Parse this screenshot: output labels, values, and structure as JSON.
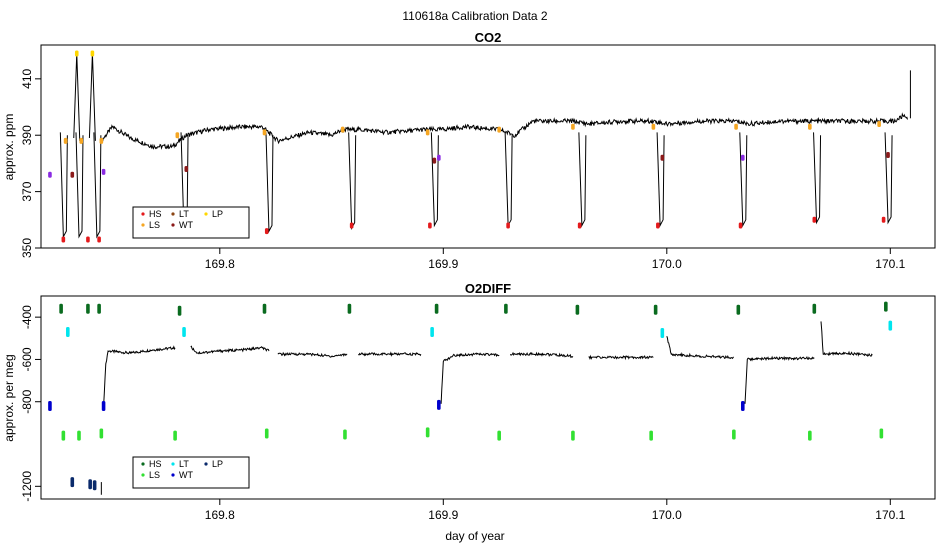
{
  "figure_title": "110618a   Calibration Data 2",
  "chart_data": [
    {
      "type": "line",
      "title": "CO2",
      "xlabel": "",
      "ylabel": "approx. ppm",
      "xlim": [
        169.72,
        170.12
      ],
      "ylim": [
        350,
        422
      ],
      "x_ticks": [
        169.8,
        169.9,
        170.0,
        170.1
      ],
      "x_tick_labels": [
        "169.8",
        "169.9",
        "170.0",
        "170.1"
      ],
      "y_ticks": [
        350,
        370,
        390,
        410
      ],
      "y_tick_labels": [
        "350",
        "370",
        "390",
        "410"
      ],
      "legend": {
        "placement": "bottom-left",
        "entries": [
          {
            "label": "HS",
            "color": "#e41a1c"
          },
          {
            "label": "LT",
            "color": "#8b4513"
          },
          {
            "label": "LP",
            "color": "#ffd700"
          },
          {
            "label": "LS",
            "color": "#f5a623"
          },
          {
            "label": "WT",
            "color": "#8b1a1a"
          }
        ]
      },
      "trace_color": "#000000",
      "baseline": [
        [
          169.747,
          388
        ],
        [
          169.752,
          393
        ],
        [
          169.76,
          389
        ],
        [
          169.77,
          386
        ],
        [
          169.779,
          386
        ],
        [
          169.785,
          390
        ],
        [
          169.795,
          392
        ],
        [
          169.81,
          393
        ],
        [
          169.819,
          393
        ],
        [
          169.826,
          388
        ],
        [
          169.84,
          391
        ],
        [
          169.85,
          390
        ],
        [
          169.855,
          392
        ],
        [
          169.863,
          392
        ],
        [
          169.875,
          391
        ],
        [
          169.891,
          392
        ],
        [
          169.899,
          392
        ],
        [
          169.91,
          393
        ],
        [
          169.925,
          392
        ],
        [
          169.932,
          390
        ],
        [
          169.94,
          395
        ],
        [
          169.958,
          395
        ],
        [
          169.965,
          394
        ],
        [
          169.98,
          395
        ],
        [
          169.994,
          395
        ],
        [
          170.0,
          394
        ],
        [
          170.015,
          395
        ],
        [
          170.031,
          395
        ],
        [
          170.037,
          394
        ],
        [
          170.05,
          395
        ],
        [
          170.063,
          395
        ],
        [
          170.07,
          395
        ],
        [
          170.08,
          395
        ],
        [
          170.093,
          395
        ],
        [
          170.102,
          395
        ],
        [
          170.106,
          397
        ],
        [
          170.108,
          396
        ]
      ],
      "dips": [
        {
          "x": 169.73,
          "bottom": 354
        },
        {
          "x": 169.737,
          "bottom": 354
        },
        {
          "x": 169.745,
          "bottom": 354
        },
        {
          "x": 169.784,
          "bottom": 355
        },
        {
          "x": 169.822,
          "bottom": 356
        },
        {
          "x": 169.859,
          "bottom": 357
        },
        {
          "x": 169.896,
          "bottom": 358
        },
        {
          "x": 169.929,
          "bottom": 358
        },
        {
          "x": 169.962,
          "bottom": 358
        },
        {
          "x": 169.997,
          "bottom": 358
        },
        {
          "x": 170.034,
          "bottom": 358
        },
        {
          "x": 170.067,
          "bottom": 359
        },
        {
          "x": 170.099,
          "bottom": 359
        }
      ],
      "spike": {
        "x": 170.109,
        "top": 413
      },
      "calibration_points": [
        {
          "x": 169.724,
          "y": 376,
          "color": "#8a2be2"
        },
        {
          "x": 169.73,
          "y": 353,
          "color": "#e41a1c"
        },
        {
          "x": 169.731,
          "y": 388,
          "color": "#f5a623"
        },
        {
          "x": 169.734,
          "y": 376,
          "color": "#8b1a1a"
        },
        {
          "x": 169.736,
          "y": 419,
          "color": "#ffd700"
        },
        {
          "x": 169.738,
          "y": 388,
          "color": "#f5a623"
        },
        {
          "x": 169.741,
          "y": 353,
          "color": "#e41a1c"
        },
        {
          "x": 169.743,
          "y": 419,
          "color": "#ffd700"
        },
        {
          "x": 169.746,
          "y": 353,
          "color": "#e41a1c"
        },
        {
          "x": 169.747,
          "y": 388,
          "color": "#f5a623"
        },
        {
          "x": 169.748,
          "y": 377,
          "color": "#8a2be2"
        },
        {
          "x": 169.781,
          "y": 390,
          "color": "#f5a623"
        },
        {
          "x": 169.783,
          "y": 356,
          "color": "#e41a1c"
        },
        {
          "x": 169.785,
          "y": 378,
          "color": "#8b1a1a"
        },
        {
          "x": 169.82,
          "y": 391,
          "color": "#f5a623"
        },
        {
          "x": 169.821,
          "y": 356,
          "color": "#e41a1c"
        },
        {
          "x": 169.855,
          "y": 392,
          "color": "#f5a623"
        },
        {
          "x": 169.859,
          "y": 358,
          "color": "#e41a1c"
        },
        {
          "x": 169.893,
          "y": 391,
          "color": "#f5a623"
        },
        {
          "x": 169.894,
          "y": 358,
          "color": "#e41a1c"
        },
        {
          "x": 169.896,
          "y": 381,
          "color": "#8b1a1a"
        },
        {
          "x": 169.898,
          "y": 382,
          "color": "#8a2be2"
        },
        {
          "x": 169.925,
          "y": 392,
          "color": "#f5a623"
        },
        {
          "x": 169.929,
          "y": 358,
          "color": "#e41a1c"
        },
        {
          "x": 169.958,
          "y": 393,
          "color": "#f5a623"
        },
        {
          "x": 169.961,
          "y": 358,
          "color": "#e41a1c"
        },
        {
          "x": 169.994,
          "y": 393,
          "color": "#f5a623"
        },
        {
          "x": 169.996,
          "y": 358,
          "color": "#e41a1c"
        },
        {
          "x": 169.998,
          "y": 382,
          "color": "#8b1a1a"
        },
        {
          "x": 170.031,
          "y": 393,
          "color": "#f5a623"
        },
        {
          "x": 170.033,
          "y": 358,
          "color": "#e41a1c"
        },
        {
          "x": 170.034,
          "y": 382,
          "color": "#8a2be2"
        },
        {
          "x": 170.064,
          "y": 393,
          "color": "#f5a623"
        },
        {
          "x": 170.066,
          "y": 360,
          "color": "#e41a1c"
        },
        {
          "x": 170.095,
          "y": 394,
          "color": "#f5a623"
        },
        {
          "x": 170.097,
          "y": 360,
          "color": "#e41a1c"
        },
        {
          "x": 170.099,
          "y": 383,
          "color": "#8b1a1a"
        }
      ]
    },
    {
      "type": "line",
      "title": "O2DIFF",
      "xlabel": "day of year",
      "ylabel": "approx. per meg",
      "xlim": [
        169.72,
        170.12
      ],
      "ylim": [
        -1260,
        -300
      ],
      "x_ticks": [
        169.8,
        169.9,
        170.0,
        170.1
      ],
      "x_tick_labels": [
        "169.8",
        "169.9",
        "170.0",
        "170.1"
      ],
      "y_ticks": [
        -1200,
        -800,
        -600,
        -400
      ],
      "y_tick_labels": [
        "-1200",
        "-800",
        "-600",
        "-400"
      ],
      "legend": {
        "placement": "bottom-left",
        "entries": [
          {
            "label": "HS",
            "color": "#0a6b1f"
          },
          {
            "label": "LT",
            "color": "#00e5ee"
          },
          {
            "label": "LP",
            "color": "#0a2a6b"
          },
          {
            "label": "LS",
            "color": "#32e032"
          },
          {
            "label": "WT",
            "color": "#0000cd"
          }
        ]
      },
      "trace_color": "#000000",
      "trace_segments": [
        [
          [
            169.748,
            -820
          ],
          [
            169.749,
            -620
          ],
          [
            169.75,
            -560
          ],
          [
            169.76,
            -570
          ],
          [
            169.77,
            -555
          ],
          [
            169.78,
            -545
          ]
        ],
        [
          [
            169.787,
            -540
          ],
          [
            169.79,
            -570
          ],
          [
            169.8,
            -560
          ],
          [
            169.81,
            -555
          ],
          [
            169.819,
            -545
          ],
          [
            169.822,
            -560
          ]
        ],
        [
          [
            169.826,
            -575
          ],
          [
            169.84,
            -575
          ],
          [
            169.85,
            -585
          ],
          [
            169.857,
            -575
          ]
        ],
        [
          [
            169.862,
            -575
          ],
          [
            169.875,
            -575
          ],
          [
            169.89,
            -575
          ]
        ],
        [
          [
            169.899,
            -810
          ],
          [
            169.9,
            -610
          ],
          [
            169.905,
            -580
          ],
          [
            169.915,
            -575
          ],
          [
            169.925,
            -580
          ]
        ],
        [
          [
            169.93,
            -575
          ],
          [
            169.945,
            -575
          ],
          [
            169.958,
            -585
          ]
        ],
        [
          [
            169.965,
            -590
          ],
          [
            169.98,
            -590
          ],
          [
            169.994,
            -590
          ]
        ],
        [
          [
            170.0,
            -490
          ],
          [
            170.002,
            -575
          ],
          [
            170.015,
            -585
          ],
          [
            170.03,
            -590
          ]
        ],
        [
          [
            170.035,
            -810
          ],
          [
            170.036,
            -600
          ],
          [
            170.045,
            -595
          ],
          [
            170.06,
            -595
          ],
          [
            170.066,
            -595
          ]
        ],
        [
          [
            170.069,
            -420
          ],
          [
            170.07,
            -575
          ],
          [
            170.08,
            -570
          ],
          [
            170.092,
            -580
          ]
        ]
      ],
      "calibration_points": [
        {
          "x": 169.724,
          "y": -820,
          "color": "#0000cd"
        },
        {
          "x": 169.729,
          "y": -360,
          "color": "#0a6b1f"
        },
        {
          "x": 169.73,
          "y": -960,
          "color": "#32e032"
        },
        {
          "x": 169.732,
          "y": -470,
          "color": "#00e5ee"
        },
        {
          "x": 169.734,
          "y": -1180,
          "color": "#0a2a6b"
        },
        {
          "x": 169.737,
          "y": -960,
          "color": "#32e032"
        },
        {
          "x": 169.741,
          "y": -360,
          "color": "#0a6b1f"
        },
        {
          "x": 169.742,
          "y": -1190,
          "color": "#0a2a6b"
        },
        {
          "x": 169.744,
          "y": -1195,
          "color": "#0a2a6b"
        },
        {
          "x": 169.746,
          "y": -360,
          "color": "#0a6b1f"
        },
        {
          "x": 169.747,
          "y": -950,
          "color": "#32e032"
        },
        {
          "x": 169.748,
          "y": -820,
          "color": "#0000cd"
        },
        {
          "x": 169.78,
          "y": -960,
          "color": "#32e032"
        },
        {
          "x": 169.782,
          "y": -370,
          "color": "#0a6b1f"
        },
        {
          "x": 169.784,
          "y": -470,
          "color": "#00e5ee"
        },
        {
          "x": 169.82,
          "y": -360,
          "color": "#0a6b1f"
        },
        {
          "x": 169.821,
          "y": -950,
          "color": "#32e032"
        },
        {
          "x": 169.856,
          "y": -955,
          "color": "#32e032"
        },
        {
          "x": 169.858,
          "y": -360,
          "color": "#0a6b1f"
        },
        {
          "x": 169.893,
          "y": -945,
          "color": "#32e032"
        },
        {
          "x": 169.895,
          "y": -470,
          "color": "#00e5ee"
        },
        {
          "x": 169.897,
          "y": -360,
          "color": "#0a6b1f"
        },
        {
          "x": 169.898,
          "y": -815,
          "color": "#0000cd"
        },
        {
          "x": 169.925,
          "y": -960,
          "color": "#32e032"
        },
        {
          "x": 169.928,
          "y": -360,
          "color": "#0a6b1f"
        },
        {
          "x": 169.958,
          "y": -960,
          "color": "#32e032"
        },
        {
          "x": 169.96,
          "y": -365,
          "color": "#0a6b1f"
        },
        {
          "x": 169.993,
          "y": -960,
          "color": "#32e032"
        },
        {
          "x": 169.995,
          "y": -365,
          "color": "#0a6b1f"
        },
        {
          "x": 169.998,
          "y": -475,
          "color": "#00e5ee"
        },
        {
          "x": 170.03,
          "y": -955,
          "color": "#32e032"
        },
        {
          "x": 170.032,
          "y": -365,
          "color": "#0a6b1f"
        },
        {
          "x": 170.034,
          "y": -820,
          "color": "#0000cd"
        },
        {
          "x": 170.064,
          "y": -960,
          "color": "#32e032"
        },
        {
          "x": 170.066,
          "y": -360,
          "color": "#0a6b1f"
        },
        {
          "x": 170.096,
          "y": -950,
          "color": "#32e032"
        },
        {
          "x": 170.098,
          "y": -350,
          "color": "#0a6b1f"
        },
        {
          "x": 170.1,
          "y": -440,
          "color": "#00e5ee"
        }
      ]
    }
  ]
}
